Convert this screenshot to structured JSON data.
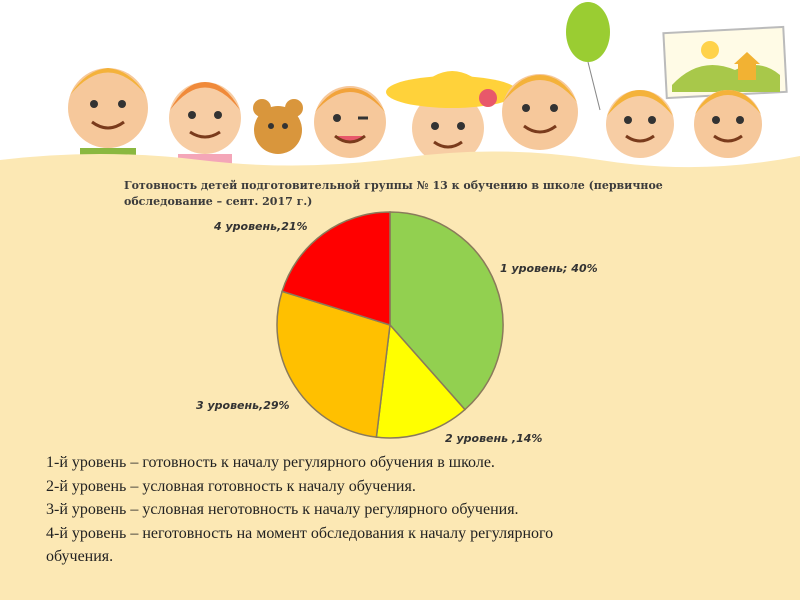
{
  "chart_data": {
    "type": "pie",
    "title": "Готовность детей подготовительной группы № 13 к обучению в школе (первичное обследование – сент. 2017 г.)",
    "slices": [
      {
        "label": "1 уровень; 40%",
        "value": 40,
        "color": "#92d050"
      },
      {
        "label": "2 уровень ,14%",
        "value": 14,
        "color": "#ffff00"
      },
      {
        "label": "3 уровень,29%",
        "value": 29,
        "color": "#ffc000"
      },
      {
        "label": "4 уровень,21%",
        "value": 21,
        "color": "#ff0000"
      }
    ]
  },
  "legend": {
    "lines": [
      "1-й уровень – готовность к началу регулярного обучения в школе.",
      "2-й уровень – условная готовность к началу обучения.",
      "3-й уровень – условная неготовность к началу регулярного обучения.",
      "4-й уровень – неготовность на момент обследования к началу регулярного",
      "обучения."
    ]
  }
}
